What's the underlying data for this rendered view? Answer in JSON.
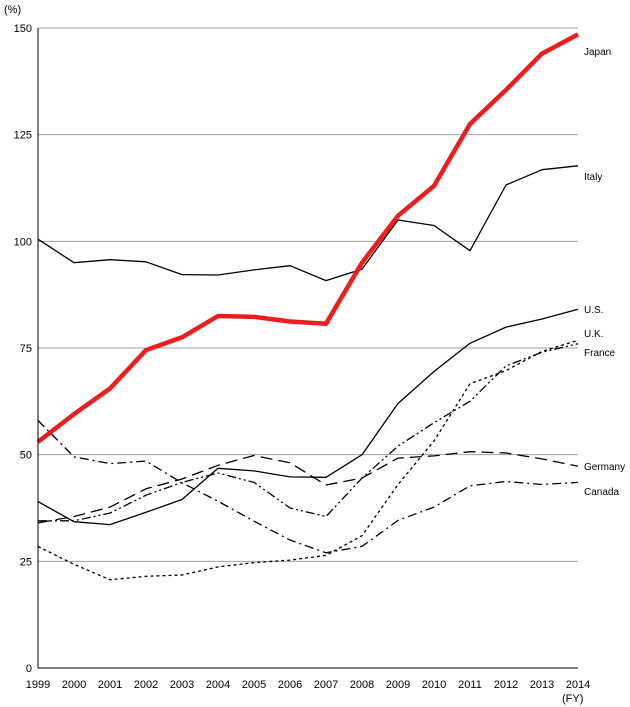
{
  "chart_data": {
    "type": "line",
    "y_unit": "(%)",
    "x_unit": "(FY)",
    "ylim": [
      0,
      150
    ],
    "yticks": [
      0,
      25,
      50,
      75,
      100,
      125,
      150
    ],
    "grid": "horizontal",
    "x": [
      "1999",
      "2000",
      "2001",
      "2002",
      "2003",
      "2004",
      "2005",
      "2006",
      "2007",
      "2008",
      "2009",
      "2010",
      "2011",
      "2012",
      "2013",
      "2014"
    ],
    "series": [
      {
        "name": "Japan",
        "style": "thick-solid",
        "color": "#ee1c1c",
        "values": [
          53,
          59.5,
          65.5,
          74.5,
          77.5,
          82.5,
          82.3,
          81.2,
          80.7,
          95,
          106,
          113,
          127.5,
          135.5,
          144,
          148.5
        ]
      },
      {
        "name": "Italy",
        "style": "solid",
        "color": "#000000",
        "values": [
          100.5,
          95,
          95.7,
          95.2,
          92.2,
          92.1,
          93.3,
          94.3,
          90.8,
          93.5,
          105,
          103.7,
          97.8,
          113.2,
          116.8,
          117.7
        ]
      },
      {
        "name": "U.S.",
        "style": "solid",
        "color": "#000000",
        "values": [
          39,
          34.3,
          33.6,
          36.5,
          39.5,
          46.8,
          46.2,
          44.8,
          44.7,
          50,
          62,
          69.5,
          76.1,
          79.9,
          81.8,
          84.1
        ]
      },
      {
        "name": "U.K.",
        "style": "dotted",
        "color": "#000000",
        "values": [
          28.5,
          24.3,
          20.7,
          21.5,
          21.8,
          23.7,
          24.7,
          25.3,
          26.4,
          31,
          43,
          53.2,
          66.6,
          69.7,
          74.2,
          76.8
        ]
      },
      {
        "name": "France",
        "style": "dash-dot-dot",
        "color": "#000000",
        "values": [
          34.5,
          34.5,
          36.3,
          40.5,
          43.5,
          45.7,
          43.5,
          37.5,
          35.5,
          44.5,
          52,
          57.5,
          62.5,
          70.8,
          74,
          76
        ]
      },
      {
        "name": "Germany",
        "style": "long-dash",
        "color": "#000000",
        "values": [
          34,
          35.5,
          37.7,
          42,
          44.3,
          47.5,
          49.8,
          48.1,
          42.9,
          44.5,
          49.2,
          49.7,
          50.7,
          50.4,
          49,
          47.3
        ]
      },
      {
        "name": "Canada",
        "style": "dash-dot",
        "color": "#000000",
        "values": [
          58,
          49.5,
          47.9,
          48.5,
          43.4,
          39.1,
          34.4,
          30,
          27,
          28.5,
          34.6,
          37.7,
          42.7,
          43.7,
          43,
          43.5
        ]
      }
    ]
  }
}
